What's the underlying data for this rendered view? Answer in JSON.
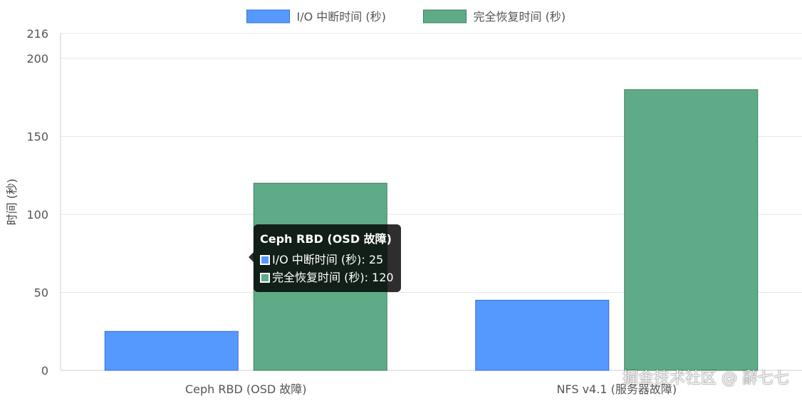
{
  "chart_data": {
    "type": "bar",
    "categories": [
      "Ceph RBD (OSD 故障)",
      "NFS v4.1 (服务器故障)"
    ],
    "series": [
      {
        "name": "I/O 中断时间 (秒)",
        "values": [
          25,
          45
        ],
        "color": "#5599ff",
        "border": "#3a6fd8"
      },
      {
        "name": "完全恢复时间 (秒)",
        "values": [
          120,
          180
        ],
        "color": "#5fab88",
        "border": "#3f7e62"
      }
    ],
    "ylabel": "时间 (秒)",
    "ylim": [
      0,
      216
    ],
    "yticks": [
      0,
      50,
      100,
      150,
      200,
      216
    ],
    "legend_position": "top",
    "grid": true
  },
  "tooltip": {
    "title": "Ceph RBD (OSD 故障)",
    "rows": [
      {
        "text": "I/O 中断时间 (秒): 25",
        "color": "#5599ff"
      },
      {
        "text": "完全恢复时间 (秒): 120",
        "color": "#5fab88"
      }
    ]
  },
  "watermark": "掘金技术社区 @ 辭七七"
}
